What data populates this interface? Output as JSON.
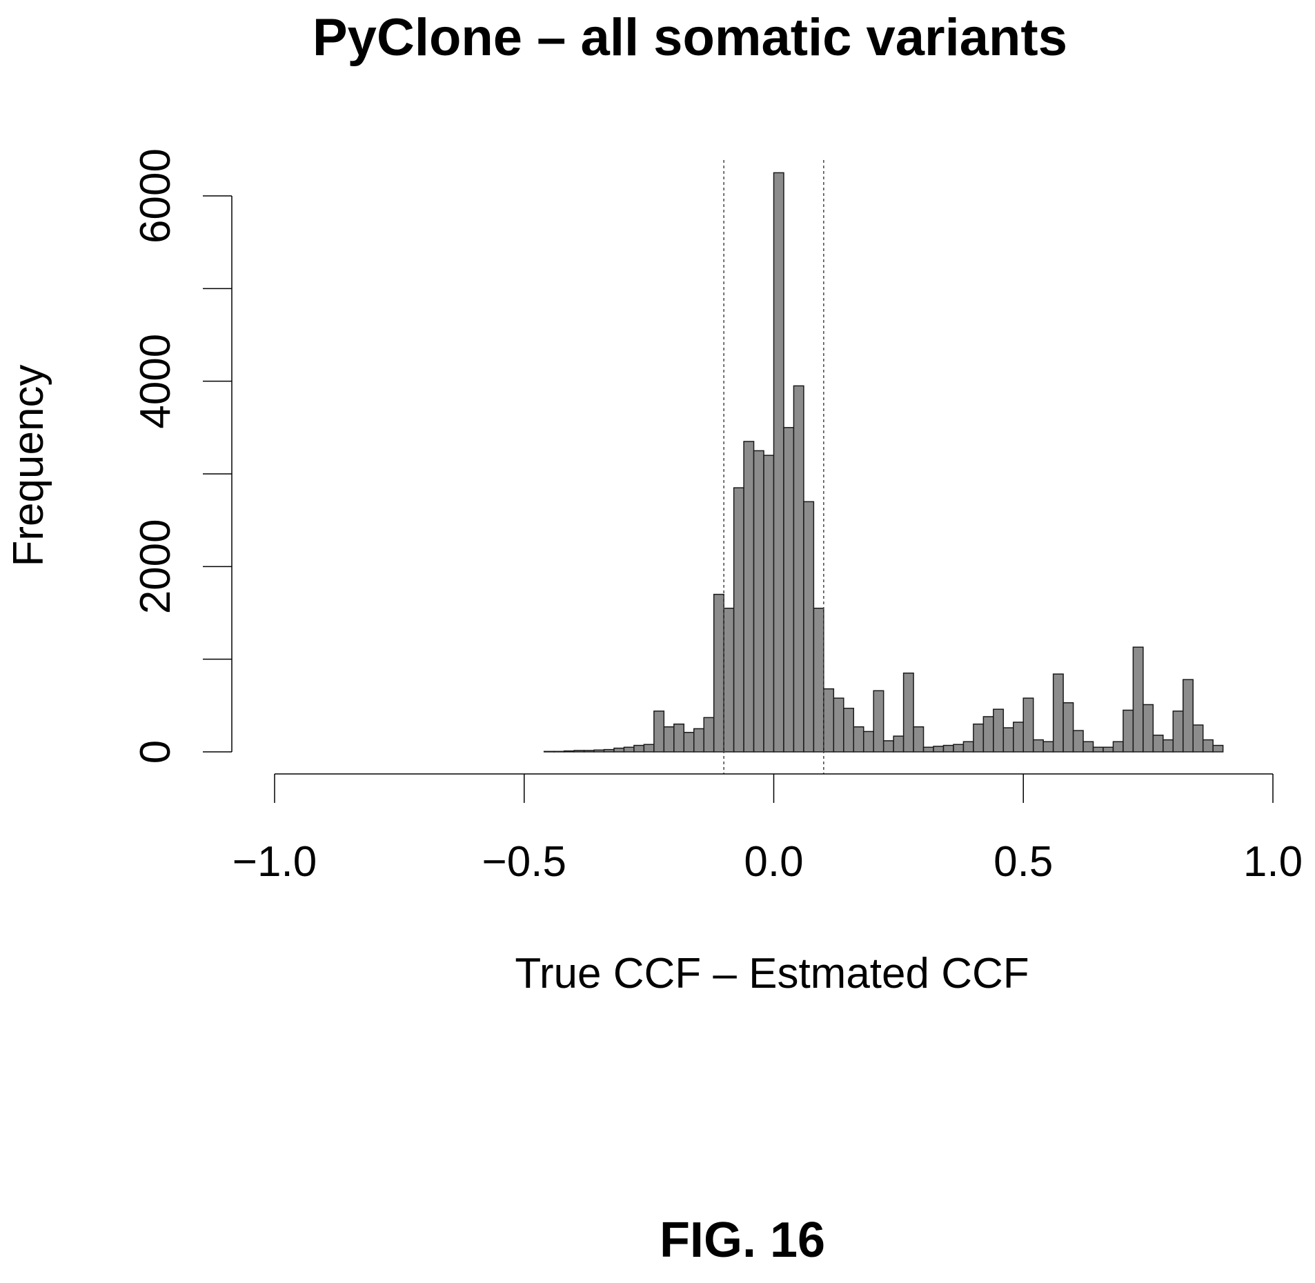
{
  "chart_data": {
    "type": "bar",
    "title": "PyClone – all somatic variants",
    "xlabel": "True CCF – Estmated CCF",
    "ylabel": "Frequency",
    "xlim": [
      -1.0,
      1.0
    ],
    "ylim": [
      0,
      6000
    ],
    "x_ticks": [
      "−1.0",
      "−0.5",
      "0.0",
      "0.5",
      "1.0"
    ],
    "x_tick_values": [
      -1.0,
      -0.5,
      0.0,
      0.5,
      1.0
    ],
    "y_ticks": [
      "0",
      "2000",
      "4000",
      "6000"
    ],
    "y_tick_values": [
      0,
      1000,
      2000,
      3000,
      4000,
      5000,
      6000
    ],
    "grid": false,
    "reference_lines_x": [
      -0.1,
      0.1
    ],
    "bin_width": 0.02,
    "bins": [
      {
        "x0": -1.0,
        "v": 0
      },
      {
        "x0": -0.98,
        "v": 0
      },
      {
        "x0": -0.96,
        "v": 0
      },
      {
        "x0": -0.94,
        "v": 0
      },
      {
        "x0": -0.92,
        "v": 0
      },
      {
        "x0": -0.9,
        "v": 0
      },
      {
        "x0": -0.88,
        "v": 0
      },
      {
        "x0": -0.86,
        "v": 0
      },
      {
        "x0": -0.84,
        "v": 0
      },
      {
        "x0": -0.82,
        "v": 0
      },
      {
        "x0": -0.8,
        "v": 0
      },
      {
        "x0": -0.78,
        "v": 0
      },
      {
        "x0": -0.76,
        "v": 0
      },
      {
        "x0": -0.74,
        "v": 0
      },
      {
        "x0": -0.72,
        "v": 0
      },
      {
        "x0": -0.7,
        "v": 0
      },
      {
        "x0": -0.68,
        "v": 0
      },
      {
        "x0": -0.66,
        "v": 0
      },
      {
        "x0": -0.64,
        "v": 0
      },
      {
        "x0": -0.62,
        "v": 0
      },
      {
        "x0": -0.6,
        "v": 0
      },
      {
        "x0": -0.58,
        "v": 0
      },
      {
        "x0": -0.56,
        "v": 0
      },
      {
        "x0": -0.54,
        "v": 0
      },
      {
        "x0": -0.52,
        "v": 0
      },
      {
        "x0": -0.5,
        "v": 0
      },
      {
        "x0": -0.48,
        "v": 0
      },
      {
        "x0": -0.46,
        "v": 5
      },
      {
        "x0": -0.44,
        "v": 5
      },
      {
        "x0": -0.42,
        "v": 10
      },
      {
        "x0": -0.4,
        "v": 15
      },
      {
        "x0": -0.38,
        "v": 15
      },
      {
        "x0": -0.36,
        "v": 20
      },
      {
        "x0": -0.34,
        "v": 25
      },
      {
        "x0": -0.32,
        "v": 40
      },
      {
        "x0": -0.3,
        "v": 50
      },
      {
        "x0": -0.28,
        "v": 70
      },
      {
        "x0": -0.26,
        "v": 80
      },
      {
        "x0": -0.24,
        "v": 440
      },
      {
        "x0": -0.22,
        "v": 270
      },
      {
        "x0": -0.2,
        "v": 300
      },
      {
        "x0": -0.18,
        "v": 210
      },
      {
        "x0": -0.16,
        "v": 250
      },
      {
        "x0": -0.14,
        "v": 370
      },
      {
        "x0": -0.12,
        "v": 1700
      },
      {
        "x0": -0.1,
        "v": 1550
      },
      {
        "x0": -0.08,
        "v": 2850
      },
      {
        "x0": -0.06,
        "v": 3350
      },
      {
        "x0": -0.04,
        "v": 3250
      },
      {
        "x0": -0.02,
        "v": 3200
      },
      {
        "x0": 0.0,
        "v": 6250
      },
      {
        "x0": 0.02,
        "v": 3500
      },
      {
        "x0": 0.04,
        "v": 3950
      },
      {
        "x0": 0.06,
        "v": 2700
      },
      {
        "x0": 0.08,
        "v": 1550
      },
      {
        "x0": 0.1,
        "v": 680
      },
      {
        "x0": 0.12,
        "v": 580
      },
      {
        "x0": 0.14,
        "v": 470
      },
      {
        "x0": 0.16,
        "v": 270
      },
      {
        "x0": 0.18,
        "v": 220
      },
      {
        "x0": 0.2,
        "v": 660
      },
      {
        "x0": 0.22,
        "v": 120
      },
      {
        "x0": 0.24,
        "v": 170
      },
      {
        "x0": 0.26,
        "v": 850
      },
      {
        "x0": 0.28,
        "v": 270
      },
      {
        "x0": 0.3,
        "v": 50
      },
      {
        "x0": 0.32,
        "v": 60
      },
      {
        "x0": 0.34,
        "v": 70
      },
      {
        "x0": 0.36,
        "v": 80
      },
      {
        "x0": 0.38,
        "v": 110
      },
      {
        "x0": 0.4,
        "v": 300
      },
      {
        "x0": 0.42,
        "v": 380
      },
      {
        "x0": 0.44,
        "v": 460
      },
      {
        "x0": 0.46,
        "v": 260
      },
      {
        "x0": 0.48,
        "v": 320
      },
      {
        "x0": 0.5,
        "v": 580
      },
      {
        "x0": 0.52,
        "v": 130
      },
      {
        "x0": 0.54,
        "v": 110
      },
      {
        "x0": 0.56,
        "v": 840
      },
      {
        "x0": 0.58,
        "v": 530
      },
      {
        "x0": 0.6,
        "v": 230
      },
      {
        "x0": 0.62,
        "v": 110
      },
      {
        "x0": 0.64,
        "v": 50
      },
      {
        "x0": 0.66,
        "v": 50
      },
      {
        "x0": 0.68,
        "v": 110
      },
      {
        "x0": 0.7,
        "v": 450
      },
      {
        "x0": 0.72,
        "v": 1130
      },
      {
        "x0": 0.74,
        "v": 510
      },
      {
        "x0": 0.76,
        "v": 180
      },
      {
        "x0": 0.78,
        "v": 130
      },
      {
        "x0": 0.8,
        "v": 440
      },
      {
        "x0": 0.82,
        "v": 780
      },
      {
        "x0": 0.84,
        "v": 290
      },
      {
        "x0": 0.86,
        "v": 130
      },
      {
        "x0": 0.88,
        "v": 70
      },
      {
        "x0": 0.9,
        "v": 0
      },
      {
        "x0": 0.92,
        "v": 0
      },
      {
        "x0": 0.94,
        "v": 0
      },
      {
        "x0": 0.96,
        "v": 0
      },
      {
        "x0": 0.98,
        "v": 0
      }
    ]
  },
  "figure_label": "FIG. 16"
}
